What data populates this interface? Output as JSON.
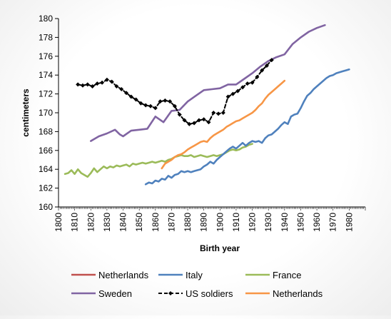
{
  "chart_data": {
    "type": "line",
    "xlabel": "Birth year",
    "ylabel": "centimeters",
    "xlim": [
      1800,
      1990
    ],
    "ylim": [
      160,
      180
    ],
    "xticks": [
      1800,
      1810,
      1820,
      1830,
      1840,
      1850,
      1860,
      1870,
      1880,
      1890,
      1900,
      1910,
      1920,
      1930,
      1940,
      1950,
      1960,
      1970,
      1980
    ],
    "yticks": [
      160,
      162,
      164,
      166,
      168,
      170,
      172,
      174,
      176,
      178,
      180
    ],
    "grid": false,
    "legend_position": "bottom",
    "series": [
      {
        "name": "Netherlands",
        "color": "#c0504d",
        "style": "solid",
        "x": [],
        "y": []
      },
      {
        "name": "Italy",
        "color": "#4f81bd",
        "style": "solid",
        "x": [
          1854,
          1856,
          1858,
          1860,
          1862,
          1864,
          1866,
          1868,
          1870,
          1872,
          1874,
          1876,
          1878,
          1880,
          1882,
          1884,
          1886,
          1888,
          1890,
          1892,
          1894,
          1896,
          1898,
          1900,
          1902,
          1904,
          1906,
          1908,
          1910,
          1912,
          1914,
          1916,
          1918,
          1920,
          1922,
          1924,
          1926,
          1928,
          1930,
          1932,
          1934,
          1936,
          1938,
          1940,
          1942,
          1944,
          1946,
          1948,
          1950,
          1952,
          1954,
          1956,
          1958,
          1960,
          1962,
          1964,
          1966,
          1968,
          1970,
          1972,
          1974,
          1976,
          1978,
          1980
        ],
        "y": [
          162.4,
          162.6,
          162.5,
          162.8,
          162.7,
          163.0,
          162.9,
          163.3,
          163.1,
          163.4,
          163.5,
          163.8,
          163.7,
          163.8,
          163.7,
          163.8,
          163.9,
          164.0,
          164.3,
          164.5,
          164.8,
          164.6,
          165.0,
          165.3,
          165.6,
          165.9,
          166.2,
          166.4,
          166.2,
          166.5,
          166.8,
          166.5,
          166.8,
          167.0,
          166.9,
          167.0,
          166.8,
          167.3,
          167.6,
          167.7,
          168.0,
          168.3,
          168.7,
          169.0,
          168.8,
          169.6,
          169.8,
          169.9,
          170.5,
          171.2,
          171.8,
          172.1,
          172.5,
          172.8,
          173.1,
          173.4,
          173.7,
          173.9,
          174.0,
          174.2,
          174.3,
          174.4,
          174.5,
          174.6
        ]
      },
      {
        "name": "France",
        "color": "#9bbb59",
        "style": "solid",
        "x": [
          1804,
          1806,
          1808,
          1810,
          1812,
          1814,
          1816,
          1818,
          1820,
          1822,
          1824,
          1826,
          1828,
          1830,
          1832,
          1834,
          1836,
          1838,
          1840,
          1842,
          1844,
          1846,
          1848,
          1850,
          1852,
          1854,
          1856,
          1858,
          1860,
          1862,
          1864,
          1866,
          1868,
          1870,
          1872,
          1874,
          1876,
          1878,
          1880,
          1882,
          1884,
          1886,
          1888,
          1890,
          1892,
          1894,
          1896,
          1898,
          1900,
          1902,
          1904,
          1906,
          1908,
          1910,
          1912,
          1914,
          1916,
          1918,
          1920
        ],
        "y": [
          163.5,
          163.6,
          163.9,
          163.5,
          164.0,
          163.6,
          163.4,
          163.2,
          163.6,
          164.1,
          163.7,
          164.0,
          164.3,
          164.1,
          164.3,
          164.2,
          164.4,
          164.3,
          164.4,
          164.5,
          164.3,
          164.6,
          164.5,
          164.6,
          164.7,
          164.6,
          164.7,
          164.8,
          164.7,
          164.8,
          164.9,
          164.8,
          165.0,
          165.1,
          165.3,
          165.4,
          165.5,
          165.4,
          165.4,
          165.5,
          165.3,
          165.4,
          165.5,
          165.4,
          165.3,
          165.4,
          165.5,
          165.4,
          165.5,
          165.6,
          165.8,
          166.0,
          166.1,
          166.0,
          166.1,
          166.3,
          166.4,
          166.6,
          166.7
        ]
      },
      {
        "name": "Sweden",
        "color": "#8064a2",
        "style": "solid",
        "x": [
          1820,
          1825,
          1830,
          1835,
          1838,
          1840,
          1845,
          1850,
          1855,
          1860,
          1865,
          1870,
          1875,
          1880,
          1885,
          1890,
          1895,
          1900,
          1905,
          1910,
          1915,
          1920,
          1925,
          1930,
          1935,
          1940,
          1945,
          1950,
          1955,
          1960,
          1965
        ],
        "y": [
          167.0,
          167.5,
          167.8,
          168.2,
          167.7,
          167.5,
          168.1,
          168.2,
          168.3,
          169.6,
          169.0,
          170.2,
          170.3,
          171.2,
          171.8,
          172.4,
          172.5,
          172.6,
          173.0,
          173.0,
          173.6,
          174.2,
          174.9,
          175.5,
          175.9,
          176.2,
          177.3,
          178.0,
          178.6,
          179.0,
          179.3
        ]
      },
      {
        "name": "US soldiers",
        "color": "#000000",
        "style": "dashed-markers",
        "x": [
          1812,
          1815,
          1818,
          1821,
          1824,
          1827,
          1830,
          1833,
          1836,
          1839,
          1842,
          1845,
          1848,
          1851,
          1854,
          1857,
          1860,
          1863,
          1866,
          1869,
          1872,
          1875,
          1878,
          1881,
          1884,
          1887,
          1890,
          1893,
          1896,
          1899,
          1902,
          1905,
          1908,
          1911,
          1914,
          1917,
          1920,
          1923,
          1926,
          1929,
          1932
        ],
        "y": [
          173.0,
          172.9,
          173.0,
          172.8,
          173.1,
          173.2,
          173.5,
          173.3,
          172.8,
          172.5,
          172.1,
          171.7,
          171.4,
          171.0,
          170.8,
          170.7,
          170.5,
          171.2,
          171.3,
          171.2,
          170.7,
          169.8,
          169.2,
          168.8,
          168.9,
          169.2,
          169.3,
          169.0,
          170.0,
          169.9,
          170.0,
          171.7,
          172.0,
          172.3,
          172.7,
          173.1,
          173.2,
          173.8,
          174.5,
          175.0,
          175.6
        ]
      },
      {
        "name": "Netherlands",
        "color": "#f79646",
        "style": "solid",
        "x": [
          1864,
          1866,
          1868,
          1870,
          1872,
          1874,
          1876,
          1878,
          1880,
          1882,
          1884,
          1886,
          1888,
          1890,
          1892,
          1894,
          1896,
          1898,
          1900,
          1902,
          1904,
          1906,
          1908,
          1910,
          1912,
          1914,
          1916,
          1918,
          1920,
          1922,
          1924,
          1926,
          1928,
          1930,
          1932,
          1934,
          1936,
          1938,
          1940
        ],
        "y": [
          164.1,
          164.6,
          164.8,
          165.0,
          165.3,
          165.5,
          165.6,
          165.8,
          166.1,
          166.3,
          166.5,
          166.7,
          166.9,
          167.0,
          166.9,
          167.3,
          167.6,
          167.8,
          168.0,
          168.2,
          168.5,
          168.7,
          168.9,
          169.1,
          169.2,
          169.4,
          169.6,
          169.8,
          170.0,
          170.3,
          170.7,
          171.0,
          171.5,
          171.9,
          172.2,
          172.5,
          172.8,
          173.1,
          173.4
        ]
      }
    ]
  }
}
